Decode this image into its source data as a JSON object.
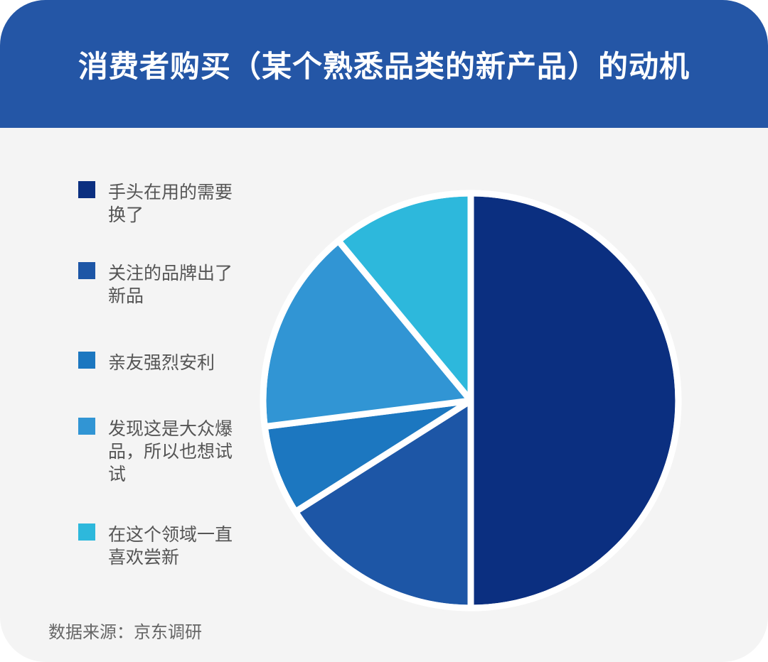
{
  "title": "消费者购买（某个熟悉品类的新产品）的动机",
  "source": "数据来源：京东调研",
  "chart_data": {
    "type": "pie",
    "title": "消费者购买（某个熟悉品类的新产品）的动机",
    "legend_position": "left",
    "slices": [
      {
        "label": "手头在用的需要换了",
        "value": 50,
        "color": "#0b2f80"
      },
      {
        "label": "关注的品牌出了新品",
        "value": 16,
        "color": "#1d56a6"
      },
      {
        "label": "亲友强烈安利",
        "value": 7,
        "color": "#1c77c0"
      },
      {
        "label": "发现这是大众爆品，所以也想试试",
        "value": 16,
        "color": "#3195d4"
      },
      {
        "label": "在这个领域一直喜欢尝新",
        "value": 11,
        "color": "#2db8dc"
      }
    ]
  }
}
